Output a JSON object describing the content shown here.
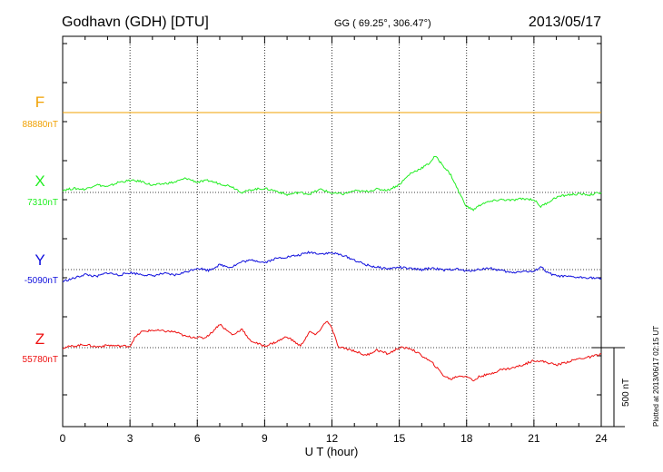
{
  "header": {
    "station": "Godhavn (GDH)  [DTU]",
    "coords": "GG ( 69.25°, 306.47°)",
    "date": "2013/05/17"
  },
  "footer": {
    "plotted": "Plotted at 2013/06/17 02:15 UT",
    "scale_label": "500 nT"
  },
  "chart_data": {
    "type": "line",
    "xlabel": "U T (hour)",
    "xlim": [
      0,
      24
    ],
    "xticks": [
      "0",
      "3",
      "6",
      "9",
      "12",
      "15",
      "18",
      "21",
      "24"
    ],
    "grid": true,
    "y_unit": "nT",
    "scale_bar_nT": 500,
    "series": [
      {
        "name": "F",
        "color": "#f0a000",
        "baseline_label": "88880nT",
        "baseline": 88880,
        "points": [
          [
            0,
            88880
          ],
          [
            24,
            88880
          ]
        ]
      },
      {
        "name": "X",
        "color": "#22ee22",
        "baseline_label": "7310nT",
        "baseline": 7310,
        "points": [
          [
            0,
            7325
          ],
          [
            0.5,
            7335
          ],
          [
            1,
            7330
          ],
          [
            1.5,
            7360
          ],
          [
            2,
            7345
          ],
          [
            2.5,
            7375
          ],
          [
            3,
            7385
          ],
          [
            3.5,
            7380
          ],
          [
            4,
            7355
          ],
          [
            4.5,
            7365
          ],
          [
            5,
            7375
          ],
          [
            5.5,
            7400
          ],
          [
            6,
            7375
          ],
          [
            6.5,
            7385
          ],
          [
            7,
            7365
          ],
          [
            7.5,
            7350
          ],
          [
            8,
            7310
          ],
          [
            8.5,
            7330
          ],
          [
            9,
            7335
          ],
          [
            9.5,
            7320
          ],
          [
            10,
            7295
          ],
          [
            10.5,
            7310
          ],
          [
            11,
            7300
          ],
          [
            11.5,
            7330
          ],
          [
            12,
            7305
          ],
          [
            12.5,
            7300
          ],
          [
            13,
            7320
          ],
          [
            13.5,
            7315
          ],
          [
            14,
            7330
          ],
          [
            14.5,
            7325
          ],
          [
            15,
            7360
          ],
          [
            15.5,
            7430
          ],
          [
            16,
            7465
          ],
          [
            16.3,
            7490
          ],
          [
            16.6,
            7540
          ],
          [
            16.9,
            7490
          ],
          [
            17.3,
            7420
          ],
          [
            17.7,
            7300
          ],
          [
            18,
            7220
          ],
          [
            18.3,
            7200
          ],
          [
            18.7,
            7240
          ],
          [
            19,
            7250
          ],
          [
            19.5,
            7265
          ],
          [
            20,
            7260
          ],
          [
            20.5,
            7270
          ],
          [
            21,
            7265
          ],
          [
            21.3,
            7220
          ],
          [
            21.6,
            7245
          ],
          [
            22,
            7280
          ],
          [
            22.5,
            7295
          ],
          [
            23,
            7300
          ],
          [
            23.5,
            7295
          ],
          [
            24,
            7310
          ]
        ]
      },
      {
        "name": "Y",
        "color": "#1010dd",
        "baseline_label": "-5090nT",
        "baseline": -5090,
        "points": [
          [
            0,
            -5165
          ],
          [
            0.5,
            -5145
          ],
          [
            1,
            -5120
          ],
          [
            1.5,
            -5135
          ],
          [
            2,
            -5110
          ],
          [
            2.5,
            -5125
          ],
          [
            3,
            -5110
          ],
          [
            3.5,
            -5120
          ],
          [
            4,
            -5130
          ],
          [
            4.5,
            -5115
          ],
          [
            5,
            -5125
          ],
          [
            5.5,
            -5105
          ],
          [
            6,
            -5080
          ],
          [
            6.5,
            -5095
          ],
          [
            7,
            -5060
          ],
          [
            7.5,
            -5075
          ],
          [
            8,
            -5040
          ],
          [
            8.5,
            -5030
          ],
          [
            9,
            -5045
          ],
          [
            9.5,
            -5020
          ],
          [
            10,
            -5010
          ],
          [
            10.5,
            -5000
          ],
          [
            11,
            -4980
          ],
          [
            11.5,
            -4990
          ],
          [
            12,
            -4985
          ],
          [
            12.5,
            -5000
          ],
          [
            13,
            -5030
          ],
          [
            13.5,
            -5060
          ],
          [
            14,
            -5075
          ],
          [
            14.5,
            -5085
          ],
          [
            15,
            -5075
          ],
          [
            15.5,
            -5085
          ],
          [
            16,
            -5090
          ],
          [
            16.5,
            -5080
          ],
          [
            17,
            -5095
          ],
          [
            17.5,
            -5085
          ],
          [
            18,
            -5100
          ],
          [
            18.5,
            -5090
          ],
          [
            19,
            -5080
          ],
          [
            19.5,
            -5095
          ],
          [
            20,
            -5110
          ],
          [
            20.5,
            -5100
          ],
          [
            21,
            -5105
          ],
          [
            21.3,
            -5070
          ],
          [
            21.6,
            -5110
          ],
          [
            22,
            -5130
          ],
          [
            22.5,
            -5135
          ],
          [
            23,
            -5140
          ],
          [
            23.5,
            -5140
          ],
          [
            24,
            -5150
          ]
        ]
      },
      {
        "name": "Z",
        "color": "#ee1010",
        "baseline_label": "55780nT",
        "baseline": 55780,
        "points": [
          [
            0,
            55780
          ],
          [
            0.5,
            55790
          ],
          [
            1,
            55800
          ],
          [
            1.5,
            55785
          ],
          [
            2,
            55795
          ],
          [
            2.5,
            55790
          ],
          [
            3,
            55790
          ],
          [
            3.2,
            55840
          ],
          [
            3.5,
            55880
          ],
          [
            4,
            55890
          ],
          [
            4.5,
            55885
          ],
          [
            5,
            55880
          ],
          [
            5.5,
            55850
          ],
          [
            6,
            55845
          ],
          [
            6.3,
            55840
          ],
          [
            6.6,
            55870
          ],
          [
            7,
            55930
          ],
          [
            7.3,
            55890
          ],
          [
            7.6,
            55860
          ],
          [
            8,
            55900
          ],
          [
            8.3,
            55830
          ],
          [
            8.6,
            55810
          ],
          [
            9,
            55790
          ],
          [
            9.5,
            55815
          ],
          [
            10,
            55850
          ],
          [
            10.3,
            55820
          ],
          [
            10.6,
            55790
          ],
          [
            11,
            55880
          ],
          [
            11.3,
            55860
          ],
          [
            11.6,
            55920
          ],
          [
            11.8,
            55950
          ],
          [
            12,
            55900
          ],
          [
            12.3,
            55780
          ],
          [
            12.6,
            55775
          ],
          [
            13,
            55760
          ],
          [
            13.5,
            55730
          ],
          [
            14,
            55765
          ],
          [
            14.5,
            55740
          ],
          [
            15,
            55780
          ],
          [
            15.5,
            55775
          ],
          [
            16,
            55730
          ],
          [
            16.5,
            55680
          ],
          [
            17,
            55600
          ],
          [
            17.3,
            55580
          ],
          [
            17.6,
            55600
          ],
          [
            18,
            55600
          ],
          [
            18.3,
            55570
          ],
          [
            18.6,
            55600
          ],
          [
            19,
            55610
          ],
          [
            19.5,
            55640
          ],
          [
            20,
            55650
          ],
          [
            20.5,
            55670
          ],
          [
            21,
            55700
          ],
          [
            21.5,
            55690
          ],
          [
            22,
            55670
          ],
          [
            22.5,
            55690
          ],
          [
            23,
            55710
          ],
          [
            23.5,
            55720
          ],
          [
            24,
            55740
          ]
        ]
      }
    ]
  }
}
